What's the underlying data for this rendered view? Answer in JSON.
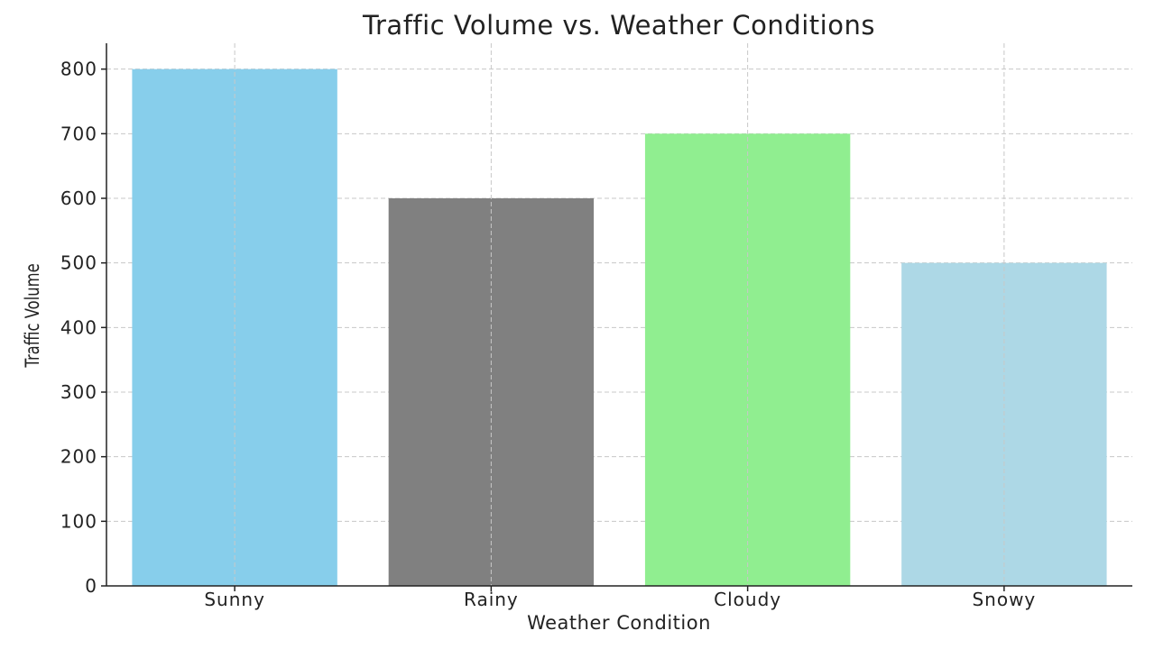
{
  "chart_data": {
    "type": "bar",
    "title": "Traffic Volume vs. Weather Conditions",
    "xlabel": "Weather Condition",
    "ylabel": "Traffic Volume",
    "categories": [
      "Sunny",
      "Rainy",
      "Cloudy",
      "Snowy"
    ],
    "values": [
      800,
      600,
      700,
      500
    ],
    "colors": [
      "#87ceeb",
      "#808080",
      "#90ee90",
      "#add8e6"
    ],
    "ylim": [
      0,
      840
    ],
    "yticks": [
      0,
      100,
      200,
      300,
      400,
      500,
      600,
      700,
      800
    ],
    "grid": true,
    "grid_style": "dashed"
  }
}
